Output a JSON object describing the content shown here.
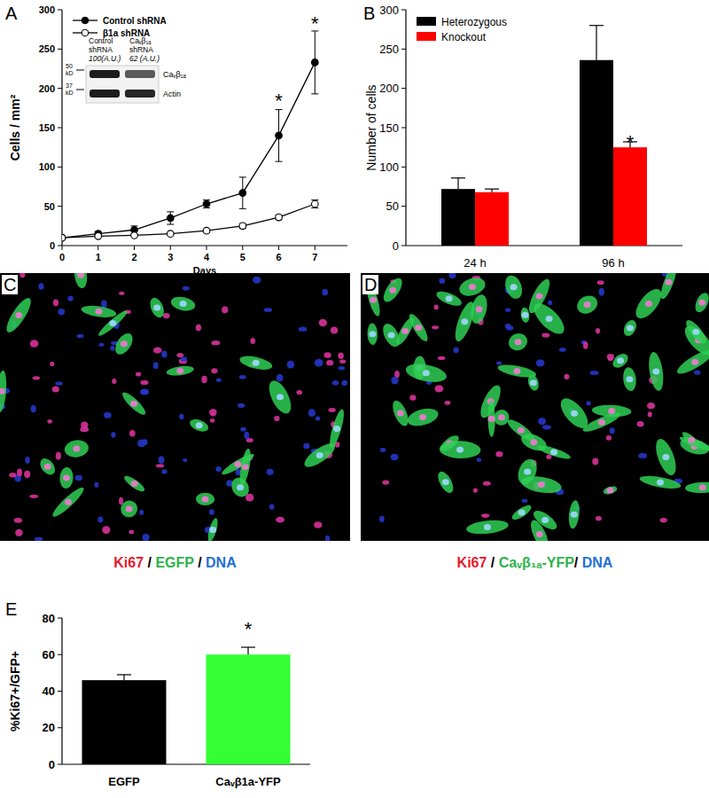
{
  "chart_data": [
    {
      "type": "line",
      "panel_label": "A",
      "x_label": "Days",
      "y_label": "Cells / mm²",
      "x": [
        0,
        1,
        2,
        3,
        4,
        5,
        6,
        7
      ],
      "xlim": [
        0,
        7.9
      ],
      "xticks": [
        0,
        1,
        2,
        3,
        4,
        5,
        6,
        7
      ],
      "ylim": [
        0,
        300
      ],
      "yticks": [
        0,
        50,
        100,
        150,
        200,
        250,
        300
      ],
      "grid": false,
      "legend": "upper left",
      "series": [
        {
          "name": "Control shRNA",
          "color": "#000000",
          "marker": "filled circle",
          "line_style": "solid",
          "values": [
            10,
            15,
            20,
            35,
            53,
            67,
            140,
            233
          ],
          "errors": [
            1,
            3,
            5,
            8,
            5,
            20,
            33,
            40
          ]
        },
        {
          "name": "β1a shRNA",
          "color": "#000000",
          "marker": "open circle",
          "line_style": "solid",
          "values": [
            10,
            12,
            13,
            15,
            19,
            25,
            36,
            53
          ],
          "errors": [
            1,
            1,
            1,
            1,
            2,
            3,
            3,
            5
          ]
        }
      ],
      "annotations": [
        {
          "text": "*",
          "x": 6,
          "y": 190
        },
        {
          "text": "*",
          "x": 7,
          "y": 288
        }
      ],
      "inset": {
        "lanes": [
          {
            "lines": [
              "Control",
              "shRNA",
              "100(A.U.)"
            ]
          },
          {
            "lines": [
              "Caᵥβ₁ₐ",
              "shRNA",
              "62 (A.U.)"
            ]
          }
        ],
        "size_markers": [
          {
            "lines": [
              "50",
              "kD"
            ]
          },
          {
            "lines": [
              "37",
              "kD"
            ]
          }
        ],
        "bands": [
          "Caᵥβ₁ₐ",
          "Actin"
        ]
      }
    },
    {
      "type": "bar",
      "panel_label": "B",
      "y_label": "Number of cells",
      "categories": [
        "24 h",
        "96 h"
      ],
      "ylim": [
        0,
        300
      ],
      "yticks": [
        0,
        50,
        100,
        150,
        200,
        250,
        300
      ],
      "grid": false,
      "legend": "upper left",
      "series": [
        {
          "name": "Heterozygous",
          "color": "#000000",
          "values": [
            72,
            236
          ],
          "errors": [
            14,
            44
          ]
        },
        {
          "name": "Knockout",
          "color": "#ff0000",
          "values": [
            68,
            125
          ],
          "errors": [
            4,
            7
          ]
        }
      ],
      "annotations": [
        {
          "text": "*",
          "category": "96 h",
          "series": "Knockout",
          "y": 137
        }
      ]
    },
    {
      "type": "bar",
      "panel_label": "E",
      "y_label": "%Ki67+/GFP+",
      "categories": [
        "EGFP",
        "Caᵥβ1a-YFP"
      ],
      "values": [
        46,
        60
      ],
      "errors": [
        3,
        4
      ],
      "colors": [
        "#000000",
        "#33ff33"
      ],
      "ylim": [
        0,
        80
      ],
      "yticks": [
        0,
        20,
        40,
        60,
        80
      ],
      "grid": false,
      "annotations": [
        {
          "text": "*",
          "category": "Caᵥβ1a-YFP",
          "y": 76
        }
      ]
    }
  ],
  "images": [
    {
      "panel_label": "C",
      "caption": [
        {
          "text": "Ki67",
          "color": "#e8192c"
        },
        {
          "text": " / "
        },
        {
          "text": "EGFP",
          "color": "#2db34a"
        },
        {
          "text": " / "
        },
        {
          "text": "DNA",
          "color": "#1f6fd6"
        }
      ]
    },
    {
      "panel_label": "D",
      "caption": [
        {
          "text": "Ki67",
          "color": "#e8192c"
        },
        {
          "text": " / "
        },
        {
          "text": "Caᵥβ₁ₐ-YFP",
          "color": "#2db34a"
        },
        {
          "text": "/ "
        },
        {
          "text": "DNA",
          "color": "#1f6fd6"
        }
      ]
    }
  ]
}
